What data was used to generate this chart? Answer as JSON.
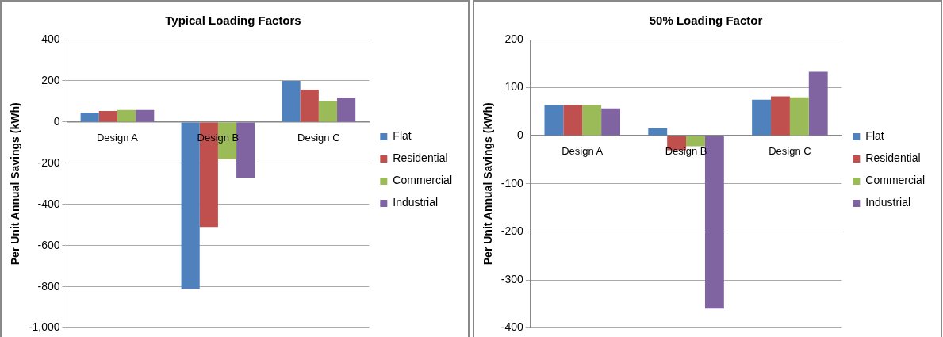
{
  "chart_data": [
    {
      "type": "bar",
      "title": "Typical Loading Factors",
      "ylabel": "Per Unit Annual Savings (kWh)",
      "categories": [
        "Design A",
        "Design B",
        "Design C"
      ],
      "series": [
        {
          "name": "Flat",
          "color": "#4f81bd",
          "values": [
            45,
            -810,
            200
          ]
        },
        {
          "name": "Residential",
          "color": "#c0504d",
          "values": [
            53,
            -510,
            157
          ]
        },
        {
          "name": "Commercial",
          "color": "#9bbb59",
          "values": [
            58,
            -180,
            102
          ]
        },
        {
          "name": "Industrial",
          "color": "#8064a2",
          "values": [
            58,
            -270,
            119
          ]
        }
      ],
      "ylim": [
        -1000,
        400
      ],
      "yticks": [
        {
          "value": -1000,
          "label": "-1,000"
        },
        -800,
        -600,
        -400,
        -200,
        0,
        200,
        400
      ],
      "grid": "y",
      "legend": "right"
    },
    {
      "type": "bar",
      "title": "50% Loading Factor",
      "ylabel": "Per Unit Annual Savings (kWh)",
      "categories": [
        "Design A",
        "Design B",
        "Design C"
      ],
      "series": [
        {
          "name": "Flat",
          "color": "#4f81bd",
          "values": [
            64,
            16,
            75
          ]
        },
        {
          "name": "Residential",
          "color": "#c0504d",
          "values": [
            64,
            -30,
            82
          ]
        },
        {
          "name": "Commercial",
          "color": "#9bbb59",
          "values": [
            64,
            -22,
            80
          ]
        },
        {
          "name": "Industrial",
          "color": "#8064a2",
          "values": [
            57,
            -360,
            133
          ]
        }
      ],
      "ylim": [
        -400,
        200
      ],
      "yticks": [
        -400,
        -300,
        -200,
        -100,
        0,
        100,
        200
      ],
      "grid": "y",
      "legend": "right"
    }
  ]
}
